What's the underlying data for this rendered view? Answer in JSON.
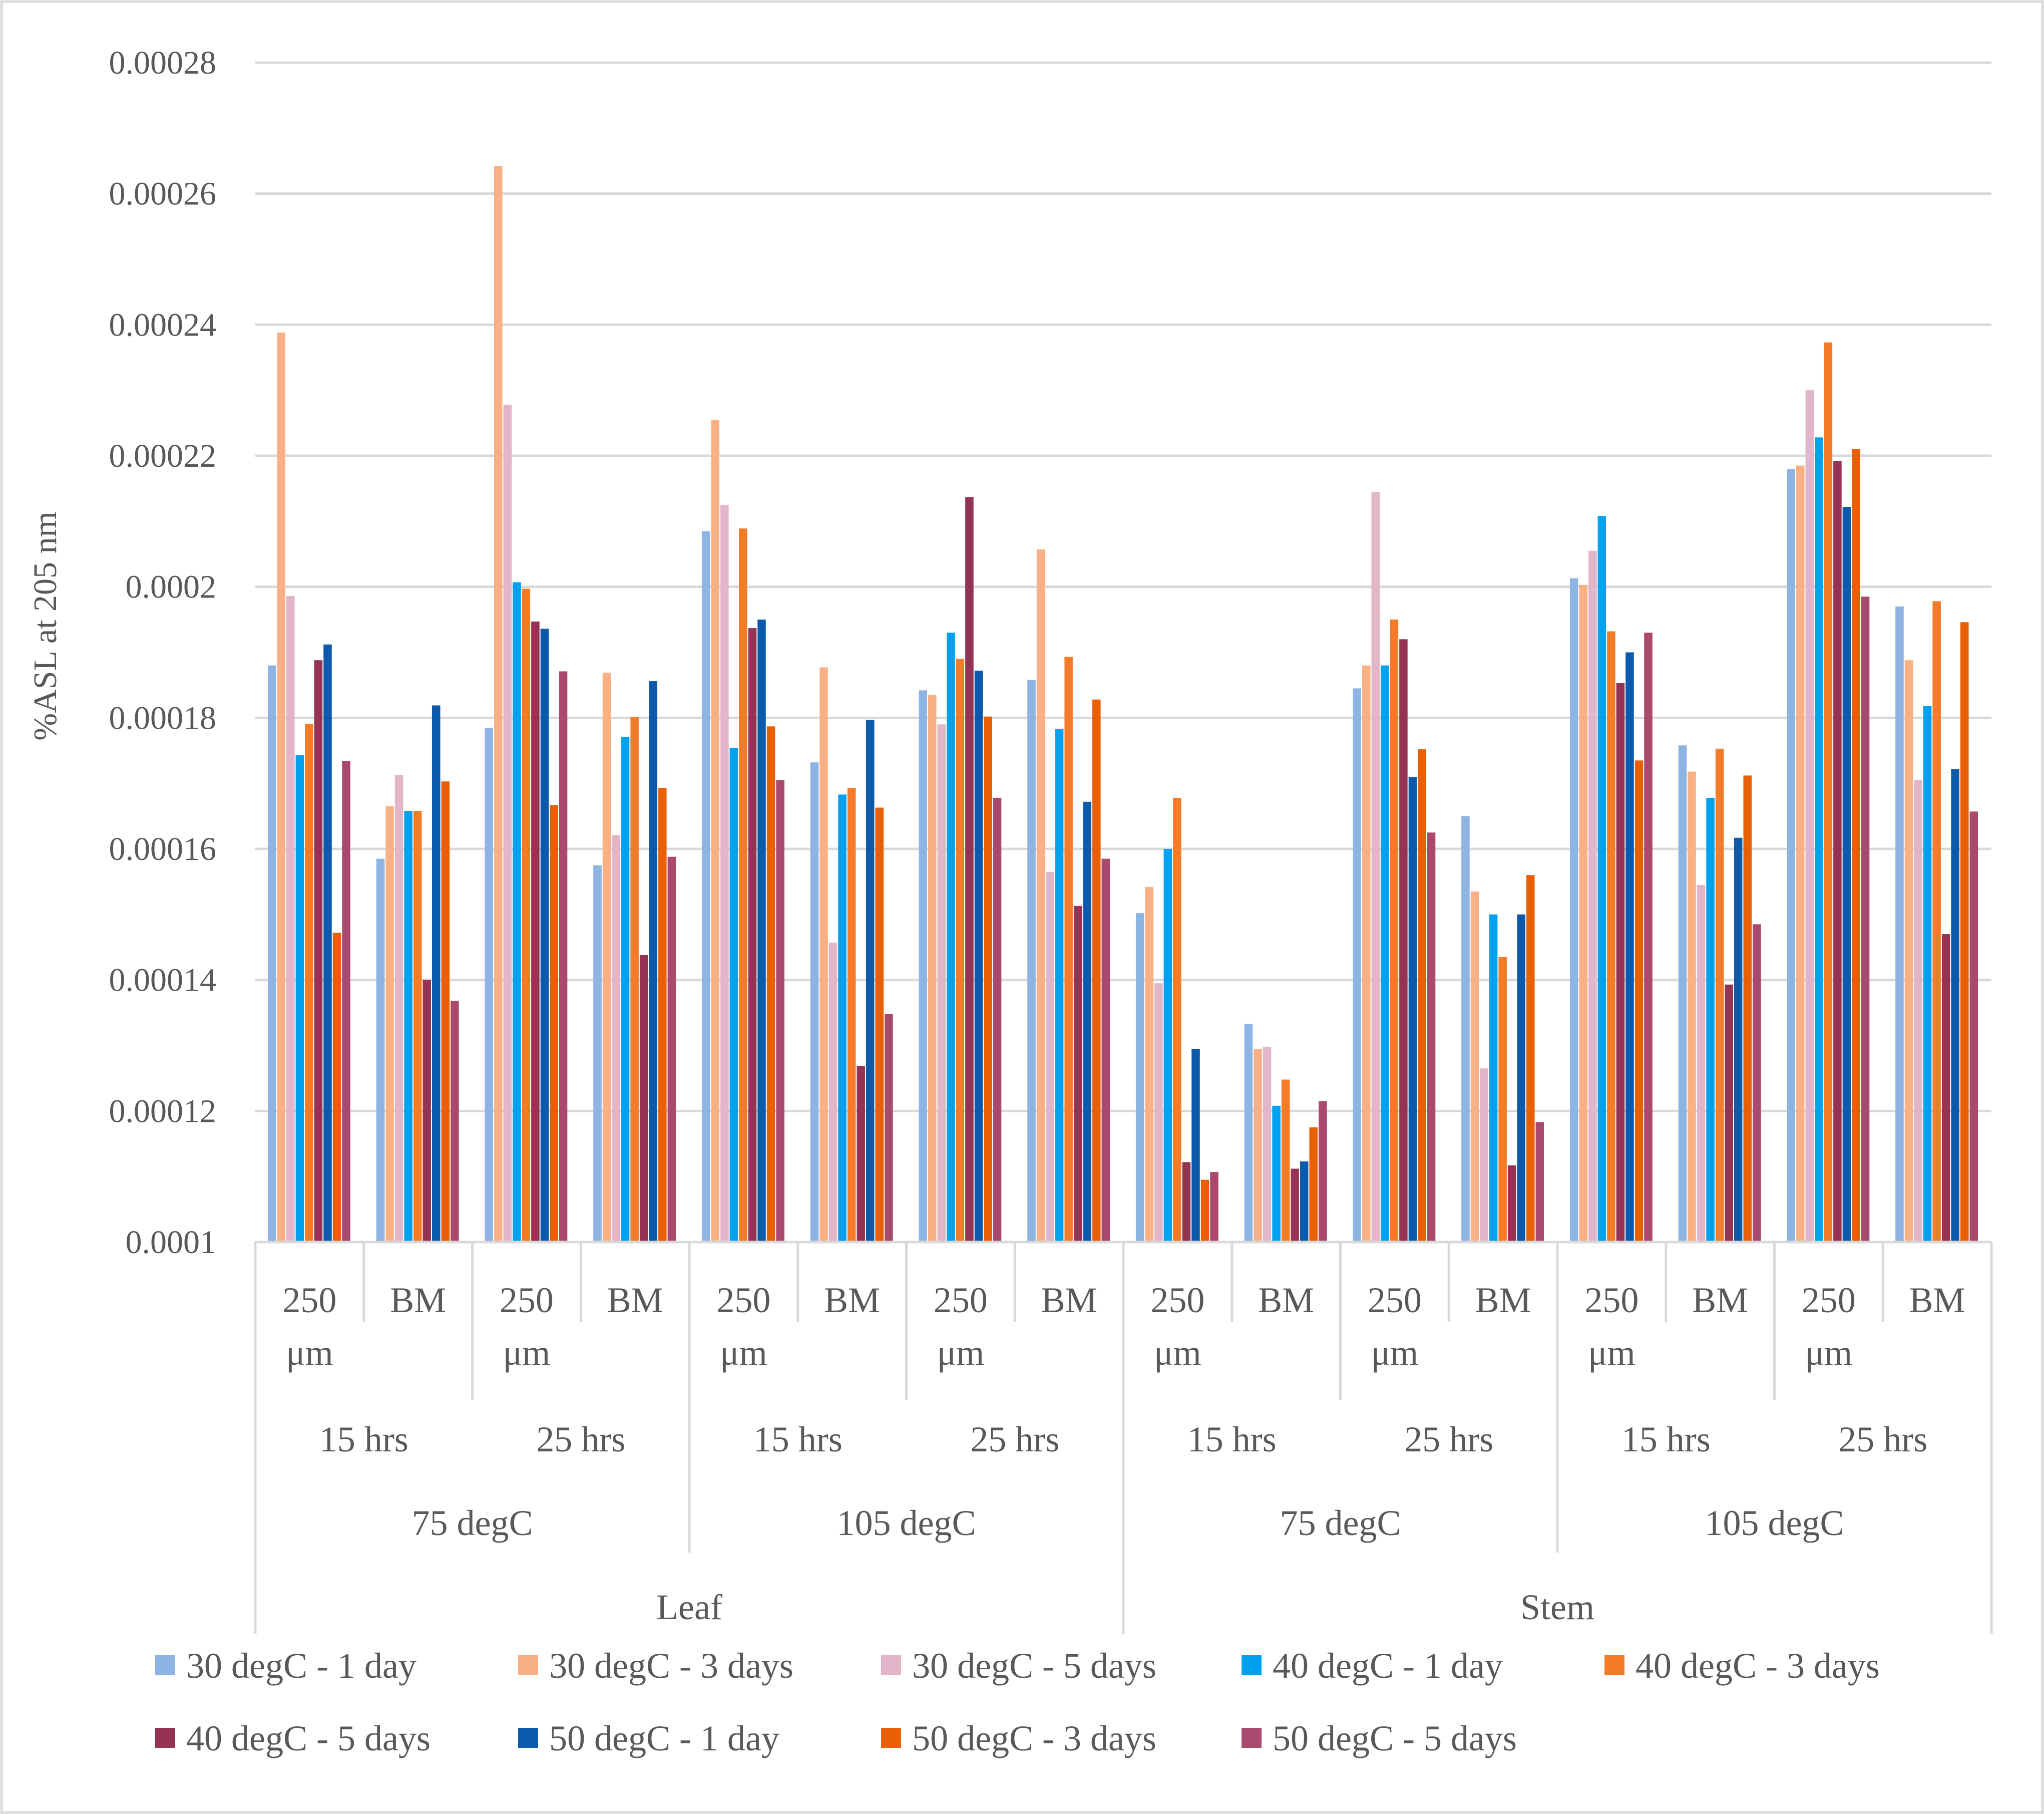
{
  "chart_data": {
    "type": "bar",
    "ylabel": "%ASL at 205 nm",
    "ylim": [
      0.0001,
      0.00028
    ],
    "yticks": [
      "0.0001",
      "0.00012",
      "0.00014",
      "0.00016",
      "0.00018",
      "0.0002",
      "0.00022",
      "0.00024",
      "0.00026",
      "0.00028"
    ],
    "grid": true,
    "legend_position": "bottom",
    "categories": [
      [
        "250",
        "μm"
      ],
      [
        "BM"
      ],
      [
        "250",
        "μm"
      ],
      [
        "BM"
      ],
      [
        "250",
        "μm"
      ],
      [
        "BM"
      ],
      [
        "250",
        "μm"
      ],
      [
        "BM"
      ],
      [
        "250",
        "μm"
      ],
      [
        "BM"
      ],
      [
        "250",
        "μm"
      ],
      [
        "BM"
      ],
      [
        "250",
        "μm"
      ],
      [
        "BM"
      ],
      [
        "250",
        "μm"
      ],
      [
        "BM"
      ]
    ],
    "category_groups_level2": [
      "15 hrs",
      "25 hrs",
      "15 hrs",
      "25 hrs",
      "15 hrs",
      "25 hrs",
      "15 hrs",
      "25 hrs"
    ],
    "category_groups_level3": [
      "75 degC",
      "105 degC",
      "75 degC",
      "105 degC"
    ],
    "category_groups_level4": [
      "Leaf",
      "Stem"
    ],
    "series": [
      {
        "name": "30 degC - 1 day",
        "color": "#8EB4E3",
        "values": [
          0.000188,
          0.0001585,
          0.0001785,
          0.0001575,
          0.0002085,
          0.0001732,
          0.0001842,
          0.0001858,
          0.0001502,
          0.0001333,
          0.0001845,
          0.000165,
          0.0002013,
          0.0001758,
          0.000218,
          0.000197
        ]
      },
      {
        "name": "30 degC - 3 days",
        "color": "#FAB085",
        "values": [
          0.0002388,
          0.0001665,
          0.0002642,
          0.0001869,
          0.0002255,
          0.0001877,
          0.0001835,
          0.0002057,
          0.0001542,
          0.0001295,
          0.000188,
          0.0001535,
          0.0002003,
          0.0001718,
          0.0002185,
          0.0001888
        ]
      },
      {
        "name": "30 degC - 5 days",
        "color": "#E2B6C8",
        "values": [
          0.0001986,
          0.0001713,
          0.0002278,
          0.0001621,
          0.0002125,
          0.0001457,
          0.000179,
          0.0001565,
          0.0001395,
          0.0001298,
          0.0002145,
          0.0001265,
          0.0002055,
          0.0001545,
          0.00023,
          0.0001705
        ]
      },
      {
        "name": "40 degC - 1 day",
        "color": "#00A2F0",
        "values": [
          0.0001743,
          0.0001658,
          0.0002007,
          0.0001771,
          0.0001754,
          0.0001683,
          0.000193,
          0.0001783,
          0.00016,
          0.0001208,
          0.000188,
          0.00015,
          0.0002108,
          0.0001678,
          0.0002228,
          0.0001818
        ]
      },
      {
        "name": "40 degC - 3 days",
        "color": "#F47C28",
        "values": [
          0.0001791,
          0.0001658,
          0.0001997,
          0.0001801,
          0.0002089,
          0.0001693,
          0.000189,
          0.0001893,
          0.0001678,
          0.0001248,
          0.000195,
          0.0001435,
          0.0001932,
          0.0001753,
          0.0002373,
          0.0001978
        ]
      },
      {
        "name": "40 degC - 5 days",
        "color": "#953355",
        "values": [
          0.0001888,
          0.00014,
          0.0001947,
          0.0001438,
          0.0001937,
          0.0001269,
          0.0002137,
          0.0001513,
          0.0001122,
          0.0001112,
          0.000192,
          0.0001117,
          0.0001853,
          0.0001393,
          0.0002192,
          0.000147
        ]
      },
      {
        "name": "50 degC - 1 day",
        "color": "#0B5AAB",
        "values": [
          0.0001912,
          0.0001819,
          0.0001936,
          0.0001856,
          0.000195,
          0.0001797,
          0.0001872,
          0.0001672,
          0.0001295,
          0.0001123,
          0.000171,
          0.00015,
          0.00019,
          0.0001617,
          0.0002122,
          0.0001722
        ]
      },
      {
        "name": "50 degC - 3 days",
        "color": "#E85F05",
        "values": [
          0.0001472,
          0.0001703,
          0.0001667,
          0.0001693,
          0.0001787,
          0.0001663,
          0.0001802,
          0.0001828,
          0.0001095,
          0.0001175,
          0.0001752,
          0.000156,
          0.0001735,
          0.0001712,
          0.000221,
          0.0001946
        ]
      },
      {
        "name": "50 degC - 5 days",
        "color": "#A8496D",
        "values": [
          0.0001734,
          0.0001368,
          0.0001871,
          0.0001588,
          0.0001705,
          0.0001348,
          0.0001678,
          0.0001585,
          0.0001107,
          0.0001215,
          0.0001625,
          0.0001183,
          0.000193,
          0.0001485,
          0.0001985,
          0.0001657
        ]
      }
    ]
  }
}
